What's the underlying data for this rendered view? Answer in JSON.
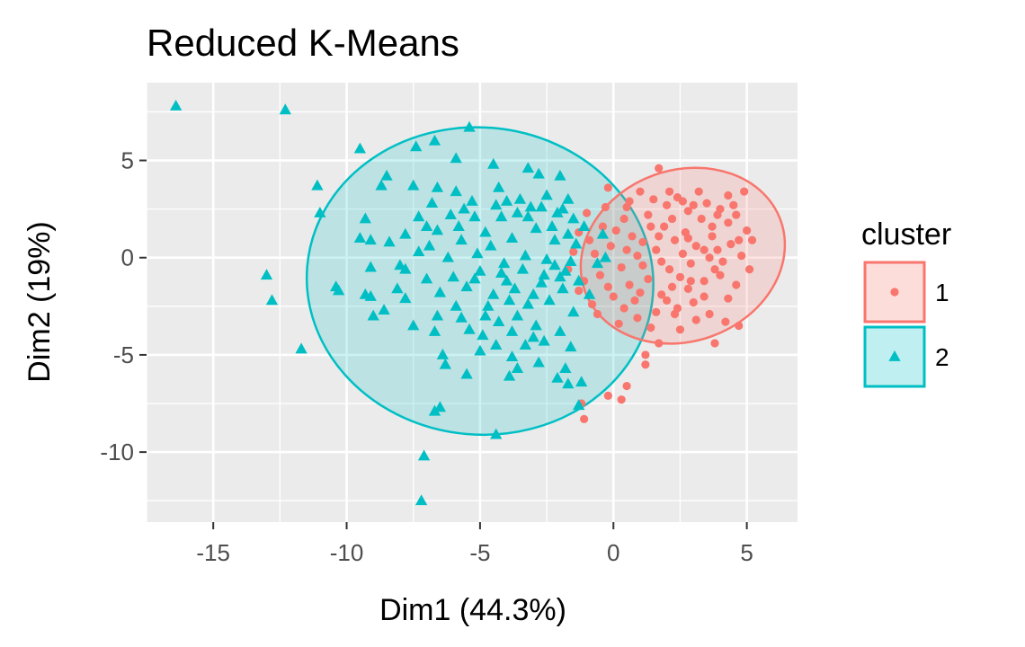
{
  "chart_data": {
    "type": "scatter",
    "title": "Reduced K-Means",
    "xlabel": "Dim1 (44.3%)",
    "ylabel": "Dim2 (19%)",
    "xlim": [
      -17.5,
      6.9
    ],
    "ylim": [
      -13.6,
      9.0
    ],
    "xticks": [
      -15,
      -10,
      -5,
      0,
      5
    ],
    "yticks": [
      5,
      0,
      -5,
      -10
    ],
    "xtick_labels": [
      "-15",
      "-10",
      "-5",
      "0",
      "5"
    ],
    "ytick_labels": [
      "5",
      "0",
      "-5",
      "-10"
    ],
    "grid": true,
    "legend": {
      "title": "cluster",
      "position": "right"
    },
    "series": [
      {
        "name": "1",
        "marker": "circle",
        "color": "#F8766D",
        "ellipse": {
          "cx": 2.6,
          "cy": 0.1,
          "rx": 3.9,
          "ry": 4.4,
          "rotation": -20
        },
        "points": [
          [
            1.7,
            4.6
          ],
          [
            1.0,
            3.4
          ],
          [
            -0.2,
            3.6
          ],
          [
            0.6,
            2.9
          ],
          [
            2.4,
            3.1
          ],
          [
            3.2,
            3.4
          ],
          [
            4.3,
            3.2
          ],
          [
            4.9,
            3.4
          ],
          [
            4.6,
            2.2
          ],
          [
            4.3,
            1.8
          ],
          [
            5.0,
            1.4
          ],
          [
            5.2,
            0.9
          ],
          [
            4.0,
            2.5
          ],
          [
            3.5,
            2.8
          ],
          [
            2.8,
            2.4
          ],
          [
            2.0,
            2.7
          ],
          [
            1.3,
            2.2
          ],
          [
            0.4,
            2.0
          ],
          [
            -0.4,
            1.6
          ],
          [
            -1.0,
            2.3
          ],
          [
            -1.3,
            1.3
          ],
          [
            -1.5,
            0.3
          ],
          [
            -1.7,
            -0.6
          ],
          [
            -1.3,
            -1.7
          ],
          [
            -0.8,
            -2.4
          ],
          [
            0.0,
            -2.0
          ],
          [
            0.4,
            -2.6
          ],
          [
            0.9,
            -3.1
          ],
          [
            1.4,
            -3.6
          ],
          [
            1.7,
            -4.4
          ],
          [
            1.2,
            -5.0
          ],
          [
            1.2,
            -5.5
          ],
          [
            0.5,
            -6.6
          ],
          [
            -0.2,
            -7.1
          ],
          [
            0.3,
            -7.3
          ],
          [
            -1.2,
            -7.5
          ],
          [
            -1.1,
            -8.3
          ],
          [
            3.8,
            -4.4
          ],
          [
            4.2,
            -3.3
          ],
          [
            4.7,
            -3.5
          ],
          [
            3.6,
            -2.9
          ],
          [
            2.4,
            -2.6
          ],
          [
            1.8,
            -1.9
          ],
          [
            2.8,
            -1.6
          ],
          [
            3.4,
            -1.2
          ],
          [
            4.0,
            -0.9
          ],
          [
            4.6,
            -1.4
          ],
          [
            5.1,
            -0.6
          ],
          [
            4.8,
            0.1
          ],
          [
            3.9,
            0.4
          ],
          [
            3.1,
            0.6
          ],
          [
            2.3,
            0.9
          ],
          [
            1.6,
            0.4
          ],
          [
            0.9,
            0.1
          ],
          [
            0.3,
            -0.5
          ],
          [
            -0.5,
            -0.9
          ],
          [
            -0.1,
            0.6
          ],
          [
            0.7,
            1.1
          ],
          [
            1.9,
            1.6
          ],
          [
            2.7,
            1.3
          ],
          [
            3.3,
            2.0
          ],
          [
            3.7,
            1.1
          ],
          [
            4.4,
            0.7
          ],
          [
            2.9,
            -0.3
          ],
          [
            2.1,
            -0.6
          ],
          [
            1.3,
            -1.1
          ],
          [
            0.6,
            -1.4
          ],
          [
            -0.6,
            -2.9
          ],
          [
            0.2,
            -3.4
          ],
          [
            0.8,
            -2.2
          ],
          [
            1.6,
            -2.8
          ],
          [
            2.5,
            -3.7
          ],
          [
            3.1,
            -3.2
          ],
          [
            3.0,
            -2.3
          ],
          [
            2.2,
            -1.5
          ],
          [
            3.6,
            0.0
          ],
          [
            4.1,
            -0.2
          ],
          [
            2.6,
            0.2
          ],
          [
            1.1,
            0.8
          ],
          [
            -0.9,
            0.9
          ],
          [
            -0.3,
            2.6
          ],
          [
            1.5,
            3.0
          ],
          [
            2.2,
            2.0
          ],
          [
            3.9,
            2.2
          ],
          [
            4.5,
            2.7
          ],
          [
            0.1,
            1.4
          ],
          [
            -1.1,
            -1.2
          ],
          [
            1.0,
            -1.8
          ],
          [
            2.0,
            -2.2
          ],
          [
            3.4,
            -2.0
          ],
          [
            4.3,
            -2.1
          ],
          [
            1.8,
            -0.2
          ],
          [
            2.8,
            1.0
          ],
          [
            3.4,
            0.4
          ],
          [
            3.8,
            -0.6
          ],
          [
            2.5,
            -1.0
          ],
          [
            1.4,
            1.6
          ],
          [
            0.5,
            0.4
          ],
          [
            4.7,
            0.9
          ],
          [
            3.0,
            2.7
          ],
          [
            2.1,
            3.4
          ],
          [
            1.7,
            1.1
          ],
          [
            2.9,
            -1.2
          ],
          [
            1.1,
            -0.4
          ],
          [
            -0.2,
            -1.5
          ],
          [
            0.5,
            2.6
          ],
          [
            -0.7,
            0.2
          ],
          [
            2.3,
            -2.9
          ],
          [
            3.7,
            1.6
          ],
          [
            2.6,
            2.9
          ]
        ]
      },
      {
        "name": "2",
        "marker": "triangle",
        "color": "#00BFC4",
        "ellipse": {
          "cx": -5.0,
          "cy": -1.2,
          "rx": 6.5,
          "ry": 7.9,
          "rotation": 5
        },
        "points": [
          [
            -16.4,
            7.8
          ],
          [
            -12.3,
            7.6
          ],
          [
            -5.4,
            6.7
          ],
          [
            -6.7,
            6.0
          ],
          [
            -7.4,
            5.7
          ],
          [
            -9.5,
            5.6
          ],
          [
            -5.9,
            5.1
          ],
          [
            -4.5,
            4.8
          ],
          [
            -3.2,
            4.6
          ],
          [
            -2.8,
            4.3
          ],
          [
            -2.0,
            4.2
          ],
          [
            -11.1,
            3.7
          ],
          [
            -8.7,
            3.7
          ],
          [
            -7.5,
            3.7
          ],
          [
            -8.5,
            4.2
          ],
          [
            -6.6,
            3.6
          ],
          [
            -5.9,
            3.4
          ],
          [
            -4.3,
            3.6
          ],
          [
            -3.5,
            3.0
          ],
          [
            -2.5,
            3.2
          ],
          [
            -1.7,
            3.0
          ],
          [
            -11.0,
            2.3
          ],
          [
            -9.3,
            2.0
          ],
          [
            -7.3,
            2.1
          ],
          [
            -6.1,
            2.2
          ],
          [
            -5.2,
            2.1
          ],
          [
            -4.2,
            2.1
          ],
          [
            -3.2,
            2.1
          ],
          [
            -2.1,
            2.3
          ],
          [
            -1.5,
            2.0
          ],
          [
            -9.5,
            1.0
          ],
          [
            -9.1,
            0.9
          ],
          [
            -7.8,
            1.2
          ],
          [
            -6.6,
            1.4
          ],
          [
            -5.8,
            1.6
          ],
          [
            -4.8,
            1.3
          ],
          [
            -3.8,
            1.0
          ],
          [
            -2.9,
            1.5
          ],
          [
            -2.2,
            0.9
          ],
          [
            -1.4,
            0.7
          ],
          [
            -7.3,
            0.3
          ],
          [
            -6.2,
            0.0
          ],
          [
            -5.1,
            0.2
          ],
          [
            -4.1,
            -0.3
          ],
          [
            -3.3,
            0.1
          ],
          [
            -2.5,
            -0.1
          ],
          [
            -1.8,
            -0.7
          ],
          [
            -9.1,
            -0.5
          ],
          [
            -10.4,
            -1.5
          ],
          [
            -10.3,
            -1.7
          ],
          [
            -9.3,
            -1.9
          ],
          [
            -9.1,
            -2.0
          ],
          [
            -8.6,
            -2.7
          ],
          [
            -7.8,
            -2.1
          ],
          [
            -6.5,
            -1.8
          ],
          [
            -5.5,
            -1.5
          ],
          [
            -4.5,
            -1.9
          ],
          [
            -3.7,
            -1.6
          ],
          [
            -2.7,
            -1.3
          ],
          [
            -1.9,
            -1.6
          ],
          [
            -13.0,
            -0.9
          ],
          [
            -12.8,
            -2.2
          ],
          [
            -11.7,
            -4.7
          ],
          [
            -9.0,
            -3.0
          ],
          [
            -7.5,
            -3.5
          ],
          [
            -6.7,
            -3.8
          ],
          [
            -5.7,
            -3.1
          ],
          [
            -4.8,
            -3.0
          ],
          [
            -4.3,
            -3.3
          ],
          [
            -3.6,
            -3.0
          ],
          [
            -2.9,
            -3.5
          ],
          [
            -2.0,
            -3.8
          ],
          [
            -5.4,
            -3.7
          ],
          [
            -3.8,
            -3.8
          ],
          [
            -3.0,
            -4.1
          ],
          [
            -2.6,
            -4.3
          ],
          [
            -4.4,
            -4.5
          ],
          [
            -6.4,
            -5.0
          ],
          [
            -5.0,
            -4.8
          ],
          [
            -3.8,
            -5.1
          ],
          [
            -2.8,
            -5.4
          ],
          [
            -6.3,
            -5.5
          ],
          [
            -1.8,
            -5.7
          ],
          [
            -5.5,
            -6.0
          ],
          [
            -3.9,
            -6.1
          ],
          [
            -2.1,
            -6.2
          ],
          [
            -1.3,
            -7.6
          ],
          [
            -1.7,
            -6.5
          ],
          [
            -1.2,
            -6.4
          ],
          [
            -6.5,
            -7.7
          ],
          [
            -6.7,
            -7.9
          ],
          [
            -4.4,
            -9.1
          ],
          [
            -7.1,
            -10.2
          ],
          [
            -7.2,
            -12.5
          ],
          [
            -3.6,
            -5.7
          ],
          [
            -3.2,
            -2.4
          ],
          [
            -2.4,
            -2.2
          ],
          [
            -1.5,
            -2.8
          ],
          [
            -4.0,
            -1.2
          ],
          [
            -5.0,
            -0.7
          ],
          [
            -6.0,
            -1.0
          ],
          [
            -7.0,
            -1.1
          ],
          [
            -8.0,
            -0.4
          ],
          [
            -8.4,
            0.8
          ],
          [
            -6.8,
            2.8
          ],
          [
            -5.3,
            2.9
          ],
          [
            -4.0,
            2.9
          ],
          [
            -3.1,
            2.6
          ],
          [
            -2.3,
            1.6
          ],
          [
            -1.7,
            1.2
          ],
          [
            -4.6,
            0.6
          ],
          [
            -3.4,
            -0.6
          ],
          [
            -2.6,
            -0.9
          ],
          [
            -1.6,
            -0.2
          ],
          [
            -5.7,
            0.9
          ],
          [
            -6.9,
            0.6
          ],
          [
            -8.1,
            -1.6
          ],
          [
            -4.7,
            -2.5
          ],
          [
            -3.9,
            -2.2
          ],
          [
            -2.2,
            -0.4
          ],
          [
            -1.3,
            -1.2
          ],
          [
            -0.4,
            1.2
          ],
          [
            -0.6,
            -0.3
          ],
          [
            -0.9,
            -1.9
          ],
          [
            -1.6,
            -4.6
          ],
          [
            -3.3,
            -4.5
          ],
          [
            -4.9,
            -4.0
          ],
          [
            -5.9,
            -2.5
          ],
          [
            -6.6,
            -3.0
          ],
          [
            -7.8,
            -0.6
          ],
          [
            -7.0,
            1.6
          ],
          [
            -5.6,
            2.5
          ],
          [
            -4.4,
            2.7
          ],
          [
            -3.6,
            2.3
          ],
          [
            -2.7,
            2.6
          ],
          [
            -1.9,
            2.5
          ],
          [
            -1.1,
            1.6
          ],
          [
            -0.3,
            0.0
          ],
          [
            -4.2,
            -0.8
          ],
          [
            -5.2,
            -1.1
          ],
          [
            -3.0,
            -1.9
          ],
          [
            -2.0,
            -1.0
          ]
        ]
      }
    ]
  }
}
